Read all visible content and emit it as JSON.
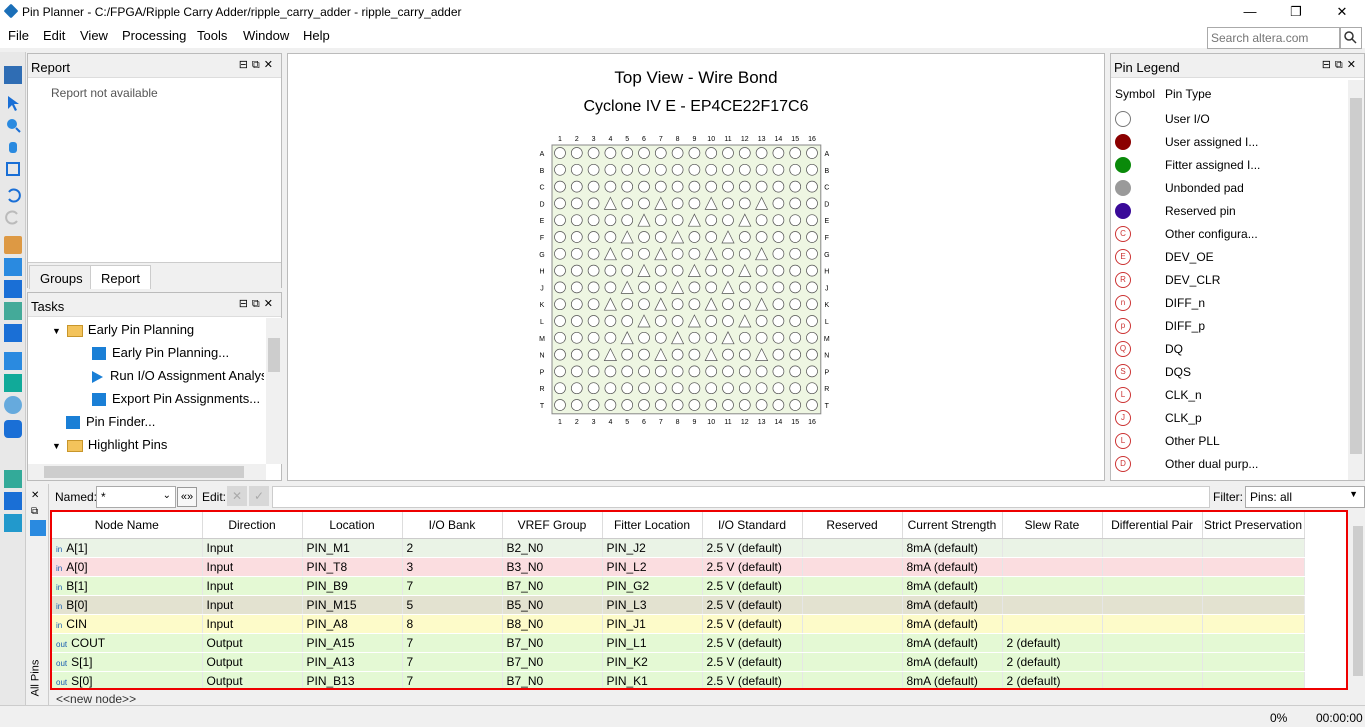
{
  "window": {
    "title": "Pin Planner - C:/FPGA/Ripple Carry Adder/ripple_carry_adder - ripple_carry_adder",
    "minimize": "—",
    "maximize": "❐",
    "close": "✕"
  },
  "menu": [
    "File",
    "Edit",
    "View",
    "Processing",
    "Tools",
    "Window",
    "Help"
  ],
  "search": {
    "placeholder": "Search altera.com"
  },
  "report": {
    "title": "Report",
    "message": "Report not available",
    "tabs": [
      "Groups",
      "Report"
    ]
  },
  "tasks": {
    "title": "Tasks",
    "items": [
      "Early Pin Planning",
      "Early Pin Planning...",
      "Run I/O Assignment Analysis",
      "Export Pin Assignments...",
      "Pin Finder...",
      "Highlight Pins"
    ]
  },
  "viewer": {
    "title": "Top View - Wire Bond",
    "subtitle": "Cyclone IV E - EP4CE22F17C6",
    "cols": [
      "1",
      "2",
      "3",
      "4",
      "5",
      "6",
      "7",
      "8",
      "9",
      "10",
      "11",
      "12",
      "13",
      "14",
      "15",
      "16"
    ],
    "rows": [
      "A",
      "B",
      "C",
      "D",
      "E",
      "F",
      "G",
      "H",
      "J",
      "K",
      "L",
      "M",
      "N",
      "P",
      "R",
      "T"
    ]
  },
  "legend": {
    "title": "Pin Legend",
    "col_symbol": "Symbol",
    "col_type": "Pin Type",
    "items": [
      {
        "label": "User I/O",
        "color": "#ffffff",
        "glyph": ""
      },
      {
        "label": "User assigned I...",
        "color": "#8b0000",
        "glyph": ""
      },
      {
        "label": "Fitter assigned I...",
        "color": "#0a8a0a",
        "glyph": ""
      },
      {
        "label": "Unbonded pad",
        "color": "#9a9a9a",
        "glyph": ""
      },
      {
        "label": "Reserved pin",
        "color": "#3a0a99",
        "glyph": ""
      },
      {
        "label": "Other configura...",
        "color": "#ffffff",
        "glyph": "C"
      },
      {
        "label": "DEV_OE",
        "color": "#ffffff",
        "glyph": "E"
      },
      {
        "label": "DEV_CLR",
        "color": "#ffffff",
        "glyph": "R"
      },
      {
        "label": "DIFF_n",
        "color": "#ffffff",
        "glyph": "n"
      },
      {
        "label": "DIFF_p",
        "color": "#ffffff",
        "glyph": "p"
      },
      {
        "label": "DQ",
        "color": "#ffffff",
        "glyph": "Q"
      },
      {
        "label": "DQS",
        "color": "#ffffff",
        "glyph": "S"
      },
      {
        "label": "CLK_n",
        "color": "#ffffff",
        "glyph": "L"
      },
      {
        "label": "CLK_p",
        "color": "#ffffff",
        "glyph": "J"
      },
      {
        "label": "Other PLL",
        "color": "#ffffff",
        "glyph": "L"
      },
      {
        "label": "Other dual purp...",
        "color": "#ffffff",
        "glyph": "D"
      }
    ]
  },
  "filter": {
    "named_label": "Named:",
    "named_value": "*",
    "edit_label": "Edit:",
    "filter_label": "Filter:",
    "filter_value": "Pins: all",
    "side_label": "All Pins"
  },
  "table": {
    "headers": [
      "Node Name",
      "Direction",
      "Location",
      "I/O Bank",
      "VREF Group",
      "Fitter Location",
      "I/O Standard",
      "Reserved",
      "Current Strength",
      "Slew Rate",
      "Differential Pair",
      "Strict Preservation"
    ],
    "rows": [
      {
        "dir": "in",
        "name": "A[1]",
        "direction": "Input",
        "location": "PIN_M1",
        "bank": "2",
        "vref": "B2_N0",
        "fitter": "PIN_J2",
        "std": "2.5 V (default)",
        "reserved": "",
        "current": "8mA (default)",
        "slew": "",
        "diff": "",
        "strict": "",
        "bg": "#eaf3e6"
      },
      {
        "dir": "in",
        "name": "A[0]",
        "direction": "Input",
        "location": "PIN_T8",
        "bank": "3",
        "vref": "B3_N0",
        "fitter": "PIN_L2",
        "std": "2.5 V (default)",
        "reserved": "",
        "current": "8mA (default)",
        "slew": "",
        "diff": "",
        "strict": "",
        "bg": "#fbdde0"
      },
      {
        "dir": "in",
        "name": "B[1]",
        "direction": "Input",
        "location": "PIN_B9",
        "bank": "7",
        "vref": "B7_N0",
        "fitter": "PIN_G2",
        "std": "2.5 V (default)",
        "reserved": "",
        "current": "8mA (default)",
        "slew": "",
        "diff": "",
        "strict": "",
        "bg": "#e4f9d4"
      },
      {
        "dir": "in",
        "name": "B[0]",
        "direction": "Input",
        "location": "PIN_M15",
        "bank": "5",
        "vref": "B5_N0",
        "fitter": "PIN_L3",
        "std": "2.5 V (default)",
        "reserved": "",
        "current": "8mA (default)",
        "slew": "",
        "diff": "",
        "strict": "",
        "bg": "#e3e2d0"
      },
      {
        "dir": "in",
        "name": "CIN",
        "direction": "Input",
        "location": "PIN_A8",
        "bank": "8",
        "vref": "B8_N0",
        "fitter": "PIN_J1",
        "std": "2.5 V (default)",
        "reserved": "",
        "current": "8mA (default)",
        "slew": "",
        "diff": "",
        "strict": "",
        "bg": "#fdfbc9"
      },
      {
        "dir": "out",
        "name": "COUT",
        "direction": "Output",
        "location": "PIN_A15",
        "bank": "7",
        "vref": "B7_N0",
        "fitter": "PIN_L1",
        "std": "2.5 V (default)",
        "reserved": "",
        "current": "8mA (default)",
        "slew": "2 (default)",
        "diff": "",
        "strict": "",
        "bg": "#e4f9d4"
      },
      {
        "dir": "out",
        "name": "S[1]",
        "direction": "Output",
        "location": "PIN_A13",
        "bank": "7",
        "vref": "B7_N0",
        "fitter": "PIN_K2",
        "std": "2.5 V (default)",
        "reserved": "",
        "current": "8mA (default)",
        "slew": "2 (default)",
        "diff": "",
        "strict": "",
        "bg": "#e4f9d4"
      },
      {
        "dir": "out",
        "name": "S[0]",
        "direction": "Output",
        "location": "PIN_B13",
        "bank": "7",
        "vref": "B7_N0",
        "fitter": "PIN_K1",
        "std": "2.5 V (default)",
        "reserved": "",
        "current": "8mA (default)",
        "slew": "2 (default)",
        "diff": "",
        "strict": "",
        "bg": "#e4f9d4"
      }
    ],
    "new_node": "<<new node>>"
  },
  "status": {
    "progress": "0%",
    "time": "00:00:00"
  }
}
